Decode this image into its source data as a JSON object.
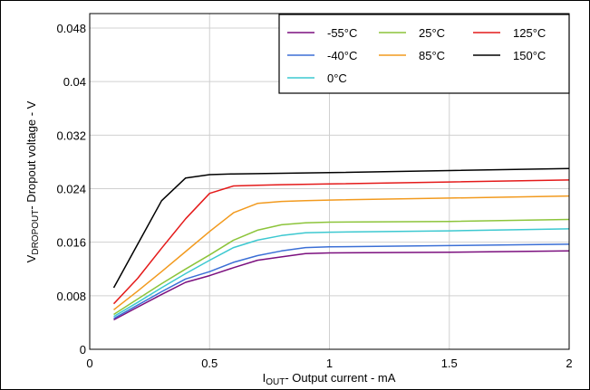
{
  "chart_data": {
    "type": "line",
    "xlabel": {
      "main": "I",
      "sub": "OUT",
      "rest": "- Output current - mA"
    },
    "ylabel": {
      "main": "V",
      "sub": "DROPOUT",
      "rest": "- Dropout voltage - V"
    },
    "xlim": [
      0,
      2
    ],
    "ylim": [
      0,
      0.05
    ],
    "xticks": [
      0,
      0.5,
      1,
      1.5,
      2
    ],
    "xtick_labels": [
      "0",
      "0.5",
      "1",
      "1.5",
      "2"
    ],
    "yticks": [
      0,
      0.008,
      0.016,
      0.024,
      0.032,
      0.04,
      0.048
    ],
    "ytick_labels": [
      "0",
      "0.008",
      "0.016",
      "0.024",
      "0.032",
      "0.04",
      "0.048"
    ],
    "grid": true,
    "legend_position": "top-right",
    "series": [
      {
        "name": "-55°C",
        "color": "#7b0f7e",
        "x": [
          0.1,
          0.2,
          0.3,
          0.4,
          0.5,
          0.6,
          0.7,
          0.8,
          0.9,
          1.0,
          1.5,
          2.0
        ],
        "y": [
          0.0044,
          0.0063,
          0.0082,
          0.01,
          0.011,
          0.0122,
          0.0133,
          0.0138,
          0.0143,
          0.0144,
          0.0145,
          0.0147
        ]
      },
      {
        "name": "-40°C",
        "color": "#3b6fd6",
        "x": [
          0.1,
          0.2,
          0.3,
          0.4,
          0.5,
          0.6,
          0.7,
          0.8,
          0.9,
          1.0,
          1.5,
          2.0
        ],
        "y": [
          0.0046,
          0.0066,
          0.0086,
          0.0105,
          0.0116,
          0.013,
          0.014,
          0.0147,
          0.0152,
          0.0153,
          0.0155,
          0.0157
        ]
      },
      {
        "name": "0°C",
        "color": "#3cc8d0",
        "x": [
          0.1,
          0.2,
          0.3,
          0.4,
          0.5,
          0.6,
          0.7,
          0.8,
          0.9,
          1.0,
          1.5,
          2.0
        ],
        "y": [
          0.0049,
          0.007,
          0.0092,
          0.0113,
          0.0133,
          0.0152,
          0.0163,
          0.017,
          0.0174,
          0.0175,
          0.0177,
          0.018
        ]
      },
      {
        "name": "25°C",
        "color": "#8cc43a",
        "x": [
          0.1,
          0.2,
          0.3,
          0.4,
          0.5,
          0.6,
          0.7,
          0.8,
          0.9,
          1.0,
          1.5,
          2.0
        ],
        "y": [
          0.0052,
          0.0075,
          0.0098,
          0.012,
          0.0141,
          0.0163,
          0.0178,
          0.0186,
          0.0189,
          0.019,
          0.0191,
          0.0194
        ]
      },
      {
        "name": "85°C",
        "color": "#f29a1e",
        "x": [
          0.1,
          0.2,
          0.3,
          0.4,
          0.5,
          0.6,
          0.7,
          0.8,
          0.9,
          1.0,
          1.5,
          2.0
        ],
        "y": [
          0.0059,
          0.0087,
          0.0116,
          0.0146,
          0.0176,
          0.0204,
          0.0218,
          0.0221,
          0.0222,
          0.0223,
          0.0226,
          0.0229
        ]
      },
      {
        "name": "125°C",
        "color": "#e41a1a",
        "x": [
          0.1,
          0.2,
          0.3,
          0.4,
          0.5,
          0.6,
          0.7,
          0.8,
          1.0,
          1.5,
          2.0
        ],
        "y": [
          0.0068,
          0.0106,
          0.0151,
          0.0195,
          0.0233,
          0.0244,
          0.0245,
          0.0246,
          0.0247,
          0.025,
          0.0253
        ]
      },
      {
        "name": "150°C",
        "color": "#000000",
        "x": [
          0.1,
          0.2,
          0.3,
          0.4,
          0.5,
          0.6,
          0.8,
          1.0,
          1.5,
          2.0
        ],
        "y": [
          0.0092,
          0.0157,
          0.0222,
          0.0256,
          0.0261,
          0.0262,
          0.0263,
          0.0264,
          0.0267,
          0.027
        ]
      }
    ]
  }
}
